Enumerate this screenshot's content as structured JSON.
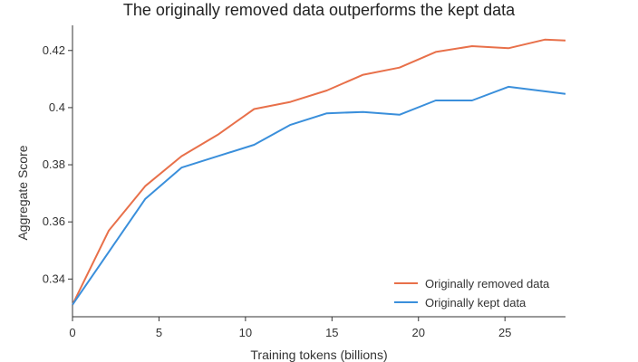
{
  "chart_data": {
    "type": "line",
    "title": "The originally removed data outperforms the kept data",
    "xlabel": "Training tokens (billions)",
    "ylabel": "Aggregate Score",
    "xlim": [
      0,
      28.5
    ],
    "ylim": [
      0.3268,
      0.4288
    ],
    "x_ticks": [
      0,
      5,
      10,
      15,
      20,
      25
    ],
    "y_ticks": [
      0.34,
      0.36,
      0.38,
      0.4,
      0.42
    ],
    "x_tick_labels": [
      "0",
      "5",
      "10",
      "15",
      "20",
      "25"
    ],
    "y_tick_labels": [
      "0.34",
      "0.36",
      "0.38",
      "0.4",
      "0.42"
    ],
    "grid": false,
    "legend_position": "bottom-right",
    "series": [
      {
        "name": "Originally removed data",
        "color": "#e8704a",
        "x": [
          0,
          2.1,
          4.2,
          6.3,
          8.4,
          10.5,
          12.6,
          14.7,
          16.8,
          18.9,
          21.0,
          23.1,
          25.2,
          27.3,
          28.5
        ],
        "y": [
          0.331,
          0.357,
          0.3725,
          0.383,
          0.3905,
          0.3995,
          0.402,
          0.406,
          0.4115,
          0.414,
          0.4195,
          0.4215,
          0.4208,
          0.4238,
          0.4235
        ]
      },
      {
        "name": "Originally kept data",
        "color": "#3a8fdb",
        "x": [
          0,
          2.1,
          4.2,
          6.3,
          8.4,
          10.5,
          12.6,
          14.7,
          16.8,
          18.9,
          21.0,
          23.1,
          25.2,
          27.3,
          28.5
        ],
        "y": [
          0.331,
          0.3495,
          0.368,
          0.379,
          0.383,
          0.387,
          0.394,
          0.398,
          0.3985,
          0.3975,
          0.4025,
          0.4025,
          0.4073,
          0.4057,
          0.4048
        ]
      }
    ]
  }
}
